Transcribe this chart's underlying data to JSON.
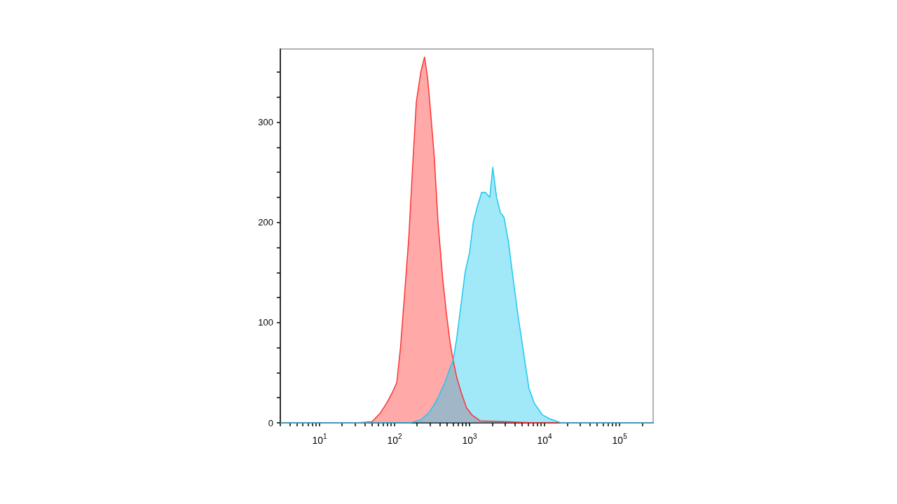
{
  "chart_data": {
    "type": "area",
    "log": "x",
    "xlim": [
      3,
      280000
    ],
    "ylim": [
      0,
      373
    ],
    "xticks": [
      {
        "value": 3,
        "label": null
      },
      {
        "value": 4,
        "label": null
      },
      {
        "value": 5,
        "label": null
      },
      {
        "value": 6,
        "label": null
      },
      {
        "value": 7,
        "label": null
      },
      {
        "value": 8,
        "label": null
      },
      {
        "value": 9,
        "label": null
      },
      {
        "value": 10,
        "label": "10$^{1}$"
      },
      {
        "value": 20,
        "label": null
      },
      {
        "value": 30,
        "label": null
      },
      {
        "value": 40,
        "label": null
      },
      {
        "value": 50,
        "label": null
      },
      {
        "value": 60,
        "label": null
      },
      {
        "value": 70,
        "label": null
      },
      {
        "value": 80,
        "label": null
      },
      {
        "value": 90,
        "label": null
      },
      {
        "value": 100,
        "label": "10$^{2}$"
      },
      {
        "value": 200,
        "label": null
      },
      {
        "value": 300,
        "label": null
      },
      {
        "value": 400,
        "label": null
      },
      {
        "value": 500,
        "label": null
      },
      {
        "value": 600,
        "label": null
      },
      {
        "value": 700,
        "label": null
      },
      {
        "value": 800,
        "label": null
      },
      {
        "value": 900,
        "label": null
      },
      {
        "value": 1000,
        "label": "10$^{3}$"
      },
      {
        "value": 2000,
        "label": null
      },
      {
        "value": 3000,
        "label": null
      },
      {
        "value": 4000,
        "label": null
      },
      {
        "value": 5000,
        "label": null
      },
      {
        "value": 6000,
        "label": null
      },
      {
        "value": 7000,
        "label": null
      },
      {
        "value": 8000,
        "label": null
      },
      {
        "value": 9000,
        "label": null
      },
      {
        "value": 10000,
        "label": "10$^{4}$"
      },
      {
        "value": 20000,
        "label": null
      },
      {
        "value": 30000,
        "label": null
      },
      {
        "value": 40000,
        "label": null
      },
      {
        "value": 50000,
        "label": null
      },
      {
        "value": 60000,
        "label": null
      },
      {
        "value": 70000,
        "label": null
      },
      {
        "value": 80000,
        "label": null
      },
      {
        "value": 90000,
        "label": null
      },
      {
        "value": 100000,
        "label": "10$^{5}$"
      },
      {
        "value": 200000,
        "label": null
      }
    ],
    "yticks": [
      0,
      {
        "value": 25,
        "label": null
      },
      {
        "value": 50,
        "label": null
      },
      {
        "value": 75,
        "label": null
      },
      100,
      {
        "value": 125,
        "label": null
      },
      {
        "value": 150,
        "label": null
      },
      {
        "value": 175,
        "label": null
      },
      200,
      {
        "value": 225,
        "label": null
      },
      {
        "value": 250,
        "label": null
      },
      {
        "value": 275,
        "label": null
      },
      300,
      {
        "value": 325,
        "label": null
      },
      {
        "value": 350,
        "label": null
      }
    ],
    "grid": false,
    "marker": "none",
    "line_style": "solid",
    "series": [
      {
        "color": "#ff3333",
        "x": [
          3,
          31,
          50,
          65,
          79,
          93,
          107,
          120,
          135,
          155,
          174,
          195,
          224,
          251,
          275,
          295,
          339,
          380,
          437,
          490,
          550,
          603,
          676,
          776,
          912,
          1070,
          1380,
          3160,
          7240,
          280000
        ],
        "values": [
          0,
          0,
          1,
          10,
          20,
          30,
          40,
          75,
          125,
          185,
          255,
          320,
          350,
          365,
          345,
          320,
          265,
          200,
          145,
          110,
          80,
          63,
          45,
          30,
          15,
          8,
          2,
          1,
          0,
          0
        ]
      },
      {
        "color": "#1ec8f0",
        "x": [
          3,
          162,
          224,
          288,
          363,
          468,
          550,
          603,
          676,
          776,
          871,
          1000,
          1120,
          1260,
          1450,
          1620,
          1860,
          2040,
          2290,
          2570,
          2880,
          3310,
          3720,
          4370,
          5250,
          6170,
          7240,
          9330,
          11700,
          16600,
          280000
        ],
        "values": [
          0,
          0,
          3,
          10,
          22,
          40,
          55,
          62,
          85,
          120,
          150,
          170,
          200,
          215,
          230,
          230,
          225,
          255,
          225,
          210,
          205,
          180,
          150,
          110,
          70,
          35,
          20,
          8,
          4,
          0,
          0
        ]
      }
    ]
  }
}
